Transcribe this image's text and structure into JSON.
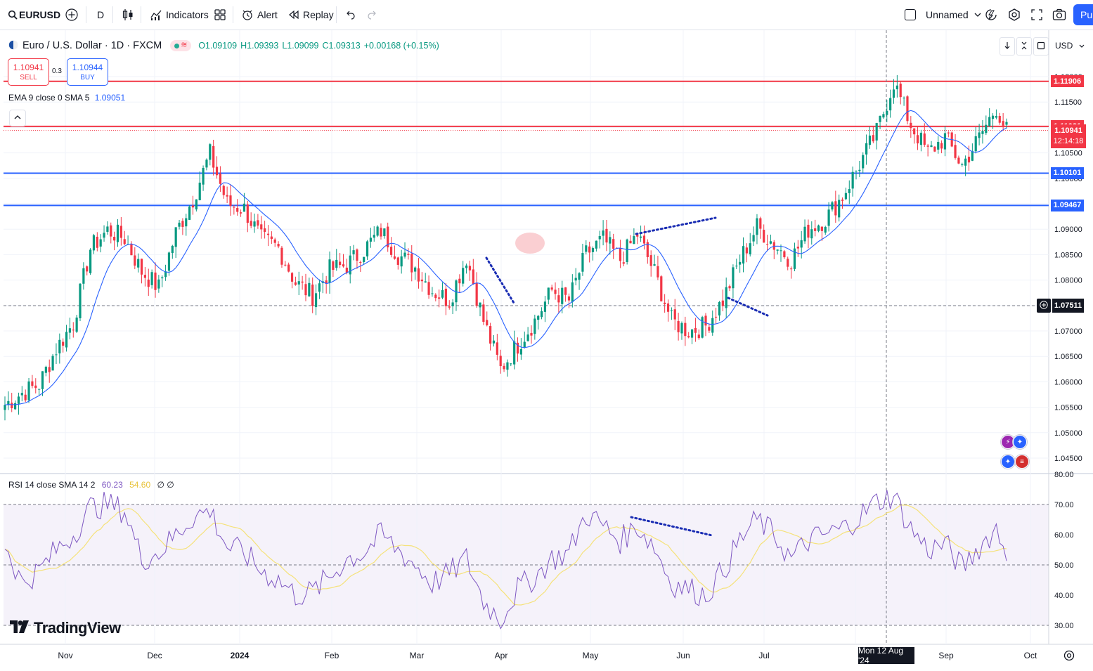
{
  "toolbar": {
    "symbol": "EURUSD",
    "interval": "D",
    "indicators_label": "Indicators",
    "alert_label": "Alert",
    "replay_label": "Replay",
    "layout_name": "Unnamed",
    "publish_label": "Pub"
  },
  "legend": {
    "title": "Euro / U.S. Dollar · 1D · FXCM",
    "open": "O1.09109",
    "high": "H1.09393",
    "low": "L1.09099",
    "close": "C1.09313",
    "change": "+0.00168 (+0.15%)",
    "ema_label": "EMA 9 close 0 SMA 5",
    "ema_value": "1.09051"
  },
  "trade": {
    "sell_price": "1.10941",
    "sell_label": "SELL",
    "spread": "0.3",
    "buy_price": "1.10944",
    "buy_label": "BUY"
  },
  "rsi_legend": {
    "label": "RSI 14 close SMA 14 2",
    "rsi_value": "60.23",
    "sma_value": "54.60",
    "extra": "∅ ∅"
  },
  "price_scale": {
    "currency": "USD",
    "ticks": [
      "1.12000",
      "1.11500",
      "1.11000",
      "1.10500",
      "1.10000",
      "1.09500",
      "1.09000",
      "1.08500",
      "1.08000",
      "1.07500",
      "1.07000",
      "1.06500",
      "1.06000",
      "1.05500",
      "1.05000",
      "1.04500"
    ],
    "rsi_ticks": [
      "80.00",
      "70.00",
      "60.00",
      "50.00",
      "40.00",
      "30.00"
    ],
    "current_price": "1.10941",
    "countdown": "12:14:18",
    "crosshair_price": "1.07511"
  },
  "horizontal_lines": [
    {
      "price": 1.11906,
      "label": "1.11906",
      "color": "#f23645"
    },
    {
      "price": 1.11021,
      "label": "1.11021",
      "color": "#f23645"
    },
    {
      "price": 1.10101,
      "label": "1.10101",
      "color": "#2962ff"
    },
    {
      "price": 1.09467,
      "label": "1.09467",
      "color": "#2962ff"
    }
  ],
  "time_axis": {
    "labels": [
      "Nov",
      "Dec",
      "2024",
      "Feb",
      "Mar",
      "Apr",
      "May",
      "Jun",
      "Jul",
      "Aug",
      "Sep",
      "Oct"
    ],
    "crosshair_date": "Mon 12 Aug '24"
  },
  "brand": {
    "logo_text": "TradingView"
  },
  "colors": {
    "up": "#089981",
    "down": "#f23645",
    "ema": "#2962ff",
    "rsi": "#7e57c2",
    "rsi_sma": "#f5e27a",
    "accent": "#2962ff"
  },
  "icons": [
    "search-icon",
    "add-symbol-icon",
    "candles-icon",
    "indicators-icon",
    "templates-icon",
    "alert-icon",
    "replay-icon",
    "undo-icon",
    "redo-icon",
    "quick-search-icon",
    "settings-icon",
    "fullscreen-icon",
    "snapshot-icon",
    "tradingview-logo"
  ],
  "chart_data": {
    "type": "candlestick",
    "title": "Euro / U.S. Dollar · 1D · FXCM",
    "xlabel": "",
    "ylabel": "",
    "ylim": [
      1.042,
      1.123
    ],
    "x_ticks": [
      "Nov",
      "Dec",
      "2024",
      "Feb",
      "Mar",
      "Apr",
      "May",
      "Jun",
      "Jul",
      "Aug",
      "Sep",
      "Oct"
    ],
    "close_path": [
      [
        0,
        1.0555
      ],
      [
        5,
        1.0578
      ],
      [
        10,
        1.0595
      ],
      [
        15,
        1.0665
      ],
      [
        20,
        1.0716
      ],
      [
        25,
        1.0862
      ],
      [
        30,
        1.0898
      ],
      [
        35,
        1.0882
      ],
      [
        40,
        1.0817
      ],
      [
        45,
        1.0785
      ],
      [
        50,
        1.0893
      ],
      [
        55,
        1.096
      ],
      [
        60,
        1.1048
      ],
      [
        65,
        1.095
      ],
      [
        70,
        1.094
      ],
      [
        75,
        1.088
      ],
      [
        80,
        1.0864
      ],
      [
        85,
        1.0795
      ],
      [
        90,
        1.077
      ],
      [
        95,
        1.082
      ],
      [
        100,
        1.083
      ],
      [
        105,
        1.086
      ],
      [
        110,
        1.0897
      ],
      [
        115,
        1.085
      ],
      [
        120,
        1.0825
      ],
      [
        125,
        1.078
      ],
      [
        130,
        1.076
      ],
      [
        135,
        1.0845
      ],
      [
        140,
        1.072
      ],
      [
        145,
        1.0625
      ],
      [
        150,
        1.0673
      ],
      [
        155,
        1.072
      ],
      [
        160,
        1.078
      ],
      [
        165,
        1.076
      ],
      [
        170,
        1.0852
      ],
      [
        175,
        1.088
      ],
      [
        180,
        1.084
      ],
      [
        185,
        1.089
      ],
      [
        190,
        1.0815
      ],
      [
        195,
        1.072
      ],
      [
        200,
        1.07
      ],
      [
        205,
        1.071
      ],
      [
        210,
        1.076
      ],
      [
        215,
        1.084
      ],
      [
        220,
        1.0905
      ],
      [
        225,
        1.087
      ],
      [
        230,
        1.084
      ],
      [
        235,
        1.09
      ],
      [
        240,
        1.092
      ],
      [
        245,
        1.0965
      ],
      [
        250,
        1.1028
      ],
      [
        255,
        1.109
      ],
      [
        260,
        1.119
      ],
      [
        265,
        1.1105
      ],
      [
        270,
        1.105
      ],
      [
        275,
        1.108
      ],
      [
        280,
        1.1025
      ],
      [
        285,
        1.108
      ],
      [
        290,
        1.114
      ],
      [
        293,
        1.1093
      ]
    ],
    "rsi_path": [
      [
        0,
        57
      ],
      [
        5,
        44
      ],
      [
        10,
        48
      ],
      [
        15,
        55
      ],
      [
        20,
        60
      ],
      [
        25,
        69
      ],
      [
        30,
        70
      ],
      [
        35,
        68
      ],
      [
        40,
        52
      ],
      [
        45,
        54
      ],
      [
        50,
        60
      ],
      [
        55,
        66
      ],
      [
        60,
        68
      ],
      [
        65,
        56
      ],
      [
        70,
        54
      ],
      [
        75,
        48
      ],
      [
        80,
        45
      ],
      [
        85,
        40
      ],
      [
        90,
        41
      ],
      [
        95,
        46
      ],
      [
        100,
        52
      ],
      [
        105,
        54
      ],
      [
        110,
        60
      ],
      [
        115,
        55
      ],
      [
        120,
        50
      ],
      [
        125,
        44
      ],
      [
        130,
        47
      ],
      [
        135,
        52
      ],
      [
        140,
        38
      ],
      [
        145,
        32
      ],
      [
        150,
        42
      ],
      [
        155,
        46
      ],
      [
        160,
        52
      ],
      [
        165,
        54
      ],
      [
        170,
        67
      ],
      [
        175,
        63
      ],
      [
        180,
        58
      ],
      [
        185,
        63
      ],
      [
        190,
        56
      ],
      [
        195,
        44
      ],
      [
        200,
        42
      ],
      [
        205,
        40
      ],
      [
        210,
        48
      ],
      [
        215,
        58
      ],
      [
        220,
        65
      ],
      [
        225,
        60
      ],
      [
        230,
        52
      ],
      [
        235,
        58
      ],
      [
        240,
        60
      ],
      [
        245,
        62
      ],
      [
        250,
        66
      ],
      [
        255,
        71
      ],
      [
        260,
        73
      ],
      [
        265,
        62
      ],
      [
        270,
        55
      ],
      [
        275,
        57
      ],
      [
        280,
        49
      ],
      [
        285,
        56
      ],
      [
        290,
        62
      ],
      [
        293,
        54
      ]
    ],
    "annotations": [
      "resistance trend line May–Jun",
      "support trend line Apr",
      "support trend line Jun–Jul",
      "RSI divergence line May–Jun",
      "highlight ellipse Apr"
    ]
  }
}
